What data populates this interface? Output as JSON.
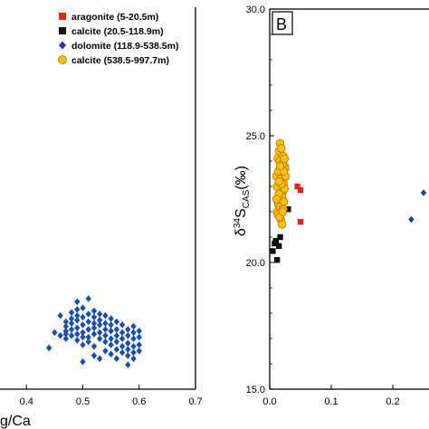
{
  "chart_data": [
    {
      "type": "scatter",
      "xlabel": "g/Ca",
      "ylabel": "",
      "xlim": [
        0.3,
        0.7
      ],
      "x_ticks": [
        "0.4",
        "0.5",
        "0.6",
        "0.7"
      ],
      "legend": {
        "placement": "top-right",
        "entries": [
          {
            "label": "aragonite (5-20.5m)",
            "marker": "square",
            "color": "#d92a1c"
          },
          {
            "label": "calcite (20.5-118.9m)",
            "marker": "square",
            "color": "#111111"
          },
          {
            "label": "dolomite (118.9-538.5m)",
            "marker": "diamond",
            "color": "#1f3f9a"
          },
          {
            "label": "calcite (538.5-997.7m)",
            "marker": "circle",
            "color": "#f5c400"
          }
        ]
      },
      "series": [
        {
          "name": "dolomite (118.9-538.5m)",
          "marker": "diamond",
          "color": "#1c4fa8",
          "points": [
            [
              0.44,
              0.79
            ],
            [
              0.45,
              0.69
            ],
            [
              0.46,
              0.71
            ],
            [
              0.47,
              0.7
            ],
            [
              0.47,
              0.68
            ],
            [
              0.47,
              0.65
            ],
            [
              0.47,
              0.62
            ],
            [
              0.48,
              0.71
            ],
            [
              0.48,
              0.67
            ],
            [
              0.48,
              0.63
            ],
            [
              0.48,
              0.6
            ],
            [
              0.48,
              0.56
            ],
            [
              0.49,
              0.74
            ],
            [
              0.49,
              0.7
            ],
            [
              0.49,
              0.66
            ],
            [
              0.49,
              0.61
            ],
            [
              0.49,
              0.58
            ],
            [
              0.49,
              0.54
            ],
            [
              0.5,
              0.77
            ],
            [
              0.5,
              0.72
            ],
            [
              0.5,
              0.69
            ],
            [
              0.5,
              0.64
            ],
            [
              0.5,
              0.59
            ],
            [
              0.5,
              0.53
            ],
            [
              0.51,
              0.72
            ],
            [
              0.51,
              0.67
            ],
            [
              0.51,
              0.62
            ],
            [
              0.51,
              0.57
            ],
            [
              0.51,
              0.75
            ],
            [
              0.52,
              0.7
            ],
            [
              0.52,
              0.66
            ],
            [
              0.52,
              0.63
            ],
            [
              0.52,
              0.59
            ],
            [
              0.52,
              0.55
            ],
            [
              0.52,
              0.78
            ],
            [
              0.53,
              0.73
            ],
            [
              0.53,
              0.69
            ],
            [
              0.53,
              0.64
            ],
            [
              0.53,
              0.61
            ],
            [
              0.53,
              0.57
            ],
            [
              0.54,
              0.75
            ],
            [
              0.54,
              0.71
            ],
            [
              0.54,
              0.67
            ],
            [
              0.54,
              0.63
            ],
            [
              0.54,
              0.58
            ],
            [
              0.54,
              0.81
            ],
            [
              0.55,
              0.77
            ],
            [
              0.55,
              0.73
            ],
            [
              0.55,
              0.68
            ],
            [
              0.55,
              0.64
            ],
            [
              0.55,
              0.6
            ],
            [
              0.56,
              0.8
            ],
            [
              0.56,
              0.75
            ],
            [
              0.56,
              0.71
            ],
            [
              0.56,
              0.67
            ],
            [
              0.56,
              0.62
            ],
            [
              0.57,
              0.82
            ],
            [
              0.57,
              0.78
            ],
            [
              0.57,
              0.73
            ],
            [
              0.57,
              0.69
            ],
            [
              0.57,
              0.64
            ],
            [
              0.58,
              0.84
            ],
            [
              0.58,
              0.8
            ],
            [
              0.58,
              0.76
            ],
            [
              0.58,
              0.71
            ],
            [
              0.58,
              0.67
            ],
            [
              0.59,
              0.86
            ],
            [
              0.59,
              0.82
            ],
            [
              0.59,
              0.78
            ],
            [
              0.59,
              0.73
            ],
            [
              0.59,
              0.69
            ],
            [
              0.59,
              0.65
            ],
            [
              0.6,
              0.81
            ],
            [
              0.6,
              0.77
            ],
            [
              0.6,
              0.72
            ],
            [
              0.6,
              0.68
            ],
            [
              0.49,
              0.49
            ],
            [
              0.51,
              0.47
            ],
            [
              0.53,
              0.86
            ],
            [
              0.5,
              0.88
            ],
            [
              0.46,
              0.58
            ],
            [
              0.47,
              0.73
            ],
            [
              0.55,
              0.83
            ],
            [
              0.56,
              0.86
            ],
            [
              0.58,
              0.9
            ],
            [
              0.52,
              0.84
            ]
          ]
        }
      ]
    },
    {
      "type": "scatter",
      "panel_label": "B",
      "xlabel": "",
      "ylabel": "δ34SCAS(‰)",
      "ylabel_parts": {
        "delta": "δ",
        "sup": "34",
        "s": "S",
        "sub": "CAS",
        "unit": "(‰)"
      },
      "xlim": [
        0.0,
        0.3
      ],
      "ylim": [
        15.0,
        30.0
      ],
      "x_ticks": [
        "0.0",
        "0.1",
        "0.2"
      ],
      "y_ticks": [
        "15.0",
        "20.0",
        "25.0",
        "30.0"
      ],
      "series": [
        {
          "name": "aragonite (5-20.5m)",
          "marker": "square",
          "color": "#d92a1c",
          "points": [
            [
              0.045,
              23.0
            ],
            [
              0.05,
              22.85
            ],
            [
              0.05,
              21.6
            ]
          ]
        },
        {
          "name": "calcite (20.5-118.9m)",
          "marker": "square",
          "color": "#111111",
          "points": [
            [
              0.005,
              20.45
            ],
            [
              0.008,
              20.75
            ],
            [
              0.01,
              20.85
            ],
            [
              0.012,
              20.1
            ],
            [
              0.015,
              20.65
            ],
            [
              0.017,
              21.0
            ],
            [
              0.02,
              22.2
            ],
            [
              0.022,
              22.5
            ],
            [
              0.03,
              22.1
            ]
          ]
        },
        {
          "name": "dolomite (118.9-538.5m)",
          "marker": "diamond",
          "color": "#1f3f9a",
          "points": [
            [
              0.23,
              21.7
            ],
            [
              0.25,
              22.75
            ]
          ]
        },
        {
          "name": "calcite (538.5-997.7m)",
          "marker": "circle",
          "color": "#f5c400",
          "points": [
            [
              0.012,
              22.0
            ],
            [
              0.014,
              22.3
            ],
            [
              0.016,
              22.6
            ],
            [
              0.018,
              22.9
            ],
            [
              0.02,
              23.2
            ],
            [
              0.022,
              23.5
            ],
            [
              0.024,
              23.8
            ],
            [
              0.013,
              24.1
            ],
            [
              0.015,
              24.4
            ],
            [
              0.017,
              24.7
            ],
            [
              0.019,
              22.4
            ],
            [
              0.021,
              22.8
            ],
            [
              0.023,
              23.1
            ],
            [
              0.011,
              23.4
            ],
            [
              0.025,
              23.7
            ],
            [
              0.016,
              24.0
            ],
            [
              0.018,
              23.3
            ],
            [
              0.02,
              22.6
            ],
            [
              0.022,
              24.2
            ],
            [
              0.014,
              23.6
            ],
            [
              0.024,
              22.9
            ],
            [
              0.012,
              23.0
            ],
            [
              0.026,
              23.4
            ],
            [
              0.017,
              22.2
            ],
            [
              0.019,
              24.5
            ],
            [
              0.021,
              23.9
            ],
            [
              0.015,
              22.7
            ],
            [
              0.023,
              23.6
            ],
            [
              0.013,
              21.9
            ],
            [
              0.018,
              21.7
            ],
            [
              0.02,
              21.5
            ],
            [
              0.016,
              21.8
            ],
            [
              0.022,
              22.1
            ],
            [
              0.024,
              24.1
            ],
            [
              0.011,
              22.5
            ],
            [
              0.019,
              23.1
            ],
            [
              0.021,
              22.0
            ],
            [
              0.017,
              23.8
            ],
            [
              0.015,
              23.2
            ],
            [
              0.023,
              22.4
            ]
          ]
        }
      ]
    }
  ]
}
